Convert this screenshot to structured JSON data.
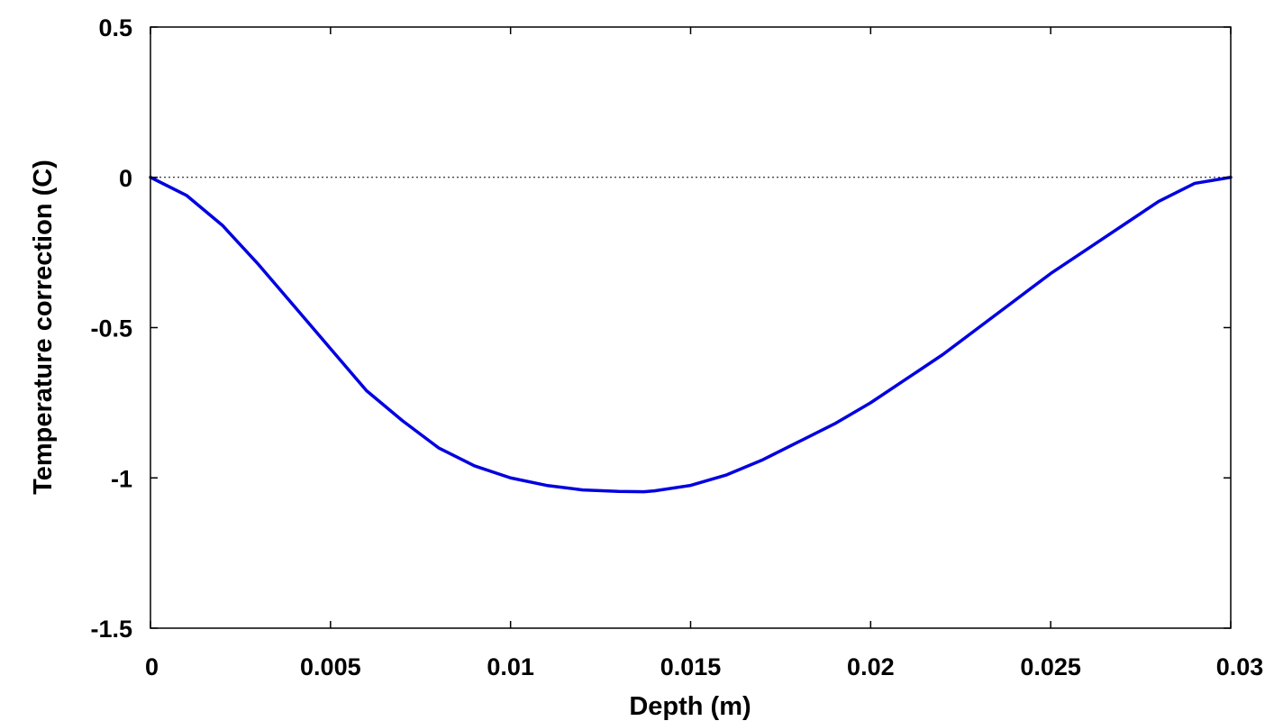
{
  "chart_data": {
    "type": "line",
    "title": "",
    "xlabel": "Depth (m)",
    "ylabel": "Temperature correction (C)",
    "xlim": [
      0,
      0.03
    ],
    "ylim": [
      -1.5,
      0.5
    ],
    "xticks": [
      0,
      0.005,
      0.01,
      0.015,
      0.02,
      0.025,
      0.03
    ],
    "xtick_labels": [
      "0",
      "0.005",
      "0.01",
      "0.015",
      "0.02",
      "0.025",
      "0.03"
    ],
    "yticks": [
      0.5,
      0,
      -0.5,
      -1,
      -1.5
    ],
    "ytick_labels": [
      "0.5",
      "0",
      "-0.5",
      "-1",
      "-1.5"
    ],
    "grid": false,
    "reference_line": {
      "y": 0,
      "style": "dotted",
      "color": "#000000"
    },
    "series": [
      {
        "color": "#0000e0",
        "x": [
          0,
          0.001,
          0.002,
          0.003,
          0.004,
          0.005,
          0.006,
          0.007,
          0.008,
          0.009,
          0.01,
          0.011,
          0.012,
          0.013,
          0.0137,
          0.014,
          0.015,
          0.016,
          0.017,
          0.018,
          0.019,
          0.02,
          0.021,
          0.022,
          0.023,
          0.024,
          0.025,
          0.026,
          0.027,
          0.028,
          0.029,
          0.03
        ],
        "y": [
          0,
          -0.06,
          -0.16,
          -0.29,
          -0.43,
          -0.57,
          -0.71,
          -0.81,
          -0.9,
          -0.96,
          -1.0,
          -1.025,
          -1.04,
          -1.045,
          -1.046,
          -1.043,
          -1.025,
          -0.99,
          -0.94,
          -0.88,
          -0.82,
          -0.75,
          -0.67,
          -0.59,
          -0.5,
          -0.41,
          -0.32,
          -0.24,
          -0.16,
          -0.08,
          -0.02,
          0
        ]
      }
    ]
  }
}
